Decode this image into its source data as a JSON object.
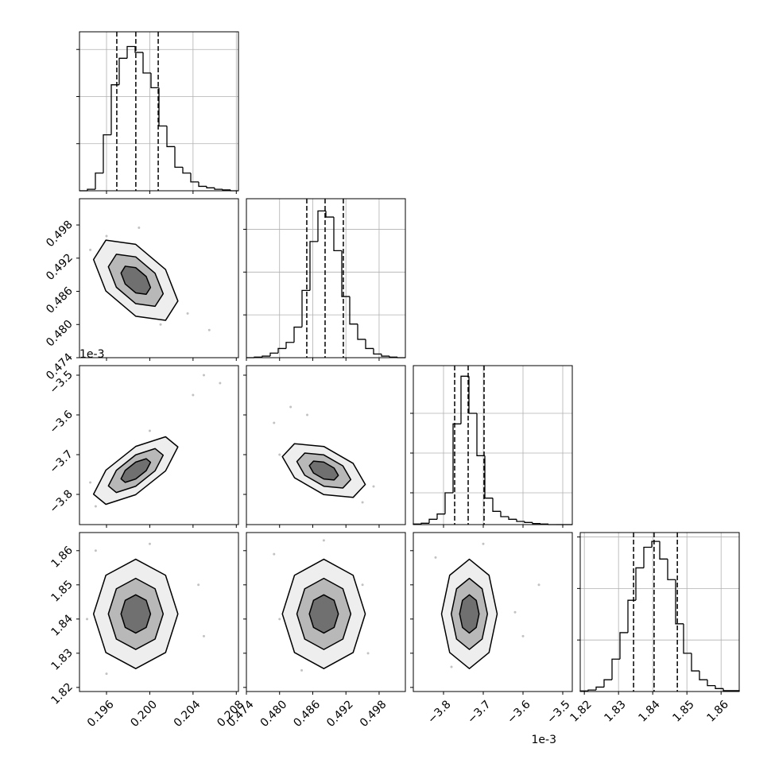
{
  "chart_data": {
    "type": "corner",
    "color": "#000000",
    "grid": true,
    "params": [
      {
        "lim": [
          0.1935,
          0.2082
        ],
        "ticks": [
          0.196,
          {
            "value": 0.2,
            "label": "0.200"
          },
          0.204,
          0.208
        ]
      },
      {
        "lim": [
          0.474,
          0.50275
        ],
        "ticks": [
          0.474,
          {
            "value": 0.48,
            "label": "0.480"
          },
          0.486,
          0.492,
          0.498
        ]
      },
      {
        "lim": [
          -3.876,
          -3.476
        ],
        "ticks": [
          {
            "value": -3.8,
            "label": "−3.8"
          },
          {
            "value": -3.7,
            "label": "−3.7"
          },
          {
            "value": -3.6,
            "label": "−3.6"
          },
          {
            "value": -3.5,
            "label": "−3.5"
          }
        ],
        "offset_label": "1e-3"
      },
      {
        "lim": [
          1.8188,
          1.8653
        ],
        "ticks": [
          1.82,
          1.83,
          1.84,
          1.85,
          1.86
        ]
      }
    ],
    "histograms": [
      {
        "bins": [
          0.1935,
          0.194235,
          0.19497,
          0.195705,
          0.19644,
          0.197175,
          0.19791,
          0.198645,
          0.19938,
          0.200115,
          0.20085,
          0.201585,
          0.20232,
          0.203055,
          0.20379,
          0.204525,
          0.20526,
          0.205995,
          0.20673,
          0.207465,
          0.2082
        ],
        "counts": [
          0,
          5,
          60,
          190,
          360,
          450,
          490,
          470,
          400,
          350,
          220,
          150,
          80,
          60,
          30,
          15,
          10,
          5,
          3,
          0
        ],
        "ylim": [
          0,
          540
        ],
        "yticks": [
          160,
          320,
          480
        ],
        "quantiles": [
          0.19695,
          0.19871,
          0.20078
        ]
      },
      {
        "bins": [
          0.474,
          0.4754375,
          0.476875,
          0.4783125,
          0.47975,
          0.4811875,
          0.482625,
          0.4840625,
          0.4855,
          0.4869375,
          0.488375,
          0.4898125,
          0.49125,
          0.4926875,
          0.494125,
          0.4955625,
          0.497,
          0.4984375,
          0.499875,
          0.5013125,
          0.50275
        ],
        "counts": [
          0,
          2,
          5,
          15,
          30,
          50,
          100,
          220,
          380,
          480,
          460,
          350,
          200,
          110,
          60,
          30,
          12,
          5,
          2,
          0
        ],
        "ylim": [
          0,
          520
        ],
        "yticks": [
          140,
          280,
          420
        ],
        "quantiles": [
          0.48492,
          0.48823,
          0.49153
        ]
      },
      {
        "bins": [
          -3.876,
          -3.856,
          -3.836,
          -3.816,
          -3.796,
          -3.776,
          -3.756,
          -3.736,
          -3.716,
          -3.696,
          -3.676,
          -3.656,
          -3.636,
          -3.616,
          -3.596,
          -3.576,
          -3.556,
          -3.536,
          -3.516,
          -3.496,
          -3.476
        ],
        "counts": [
          2,
          5,
          20,
          40,
          120,
          380,
          560,
          420,
          260,
          100,
          50,
          30,
          20,
          12,
          8,
          4,
          2,
          0,
          0,
          0
        ],
        "ylim": [
          0,
          600
        ],
        "yticks": [
          120,
          270,
          420
        ],
        "quantiles": [
          -3.772,
          -3.738,
          -3.698
        ]
      },
      {
        "bins": [
          1.8188,
          1.821125,
          1.82345,
          1.825775,
          1.8281,
          1.830425,
          1.83275,
          1.835075,
          1.8374,
          1.839725,
          1.84205,
          1.844375,
          1.8467,
          1.849025,
          1.85135,
          1.853675,
          1.856,
          1.858325,
          1.86065,
          1.862975,
          1.8653
        ],
        "counts": [
          2,
          5,
          15,
          40,
          110,
          200,
          310,
          420,
          490,
          510,
          450,
          380,
          230,
          130,
          70,
          40,
          20,
          10,
          3,
          3
        ],
        "ylim": [
          0,
          540
        ],
        "yticks": [
          175,
          350,
          525
        ],
        "quantiles": [
          1.8344,
          1.8404,
          1.8472
        ]
      }
    ],
    "pairs": [
      {
        "points": {
          "x": [
            0.1945,
            0.2035,
            0.2055,
            0.196,
            0.201,
            0.199
          ],
          "y": [
            0.4935,
            0.482,
            0.479,
            0.496,
            0.48,
            0.4975
          ]
        },
        "contours": [
          {
            "x": [
              0.2026,
              0.20146,
              0.1987,
              0.19594,
              0.1948,
              0.19594,
              0.1987,
              0.20146
            ],
            "y": [
              0.48425,
              0.48994,
              0.4945,
              0.49525,
              0.49175,
              0.48606,
              0.4815,
              0.48075
            ]
          },
          {
            "x": [
              0.20124,
              0.20049,
              0.1987,
              0.19691,
              0.19617,
              0.19691,
              0.1987,
              0.20049
            ],
            "y": [
              0.48556,
              0.48926,
              0.49223,
              0.49271,
              0.49044,
              0.48674,
              0.48377,
              0.48329
            ]
          },
          {
            "x": [
              0.20007,
              0.19967,
              0.1987,
              0.19773,
              0.19734,
              0.19773,
              0.1987,
              0.19967
            ],
            "y": [
              0.48669,
              0.48868,
              0.49028,
              0.49054,
              0.48931,
              0.48732,
              0.48572,
              0.48546
            ]
          }
        ]
      },
      {
        "points": {
          "x": [
            0.204,
            0.205,
            0.195,
            0.2,
            0.2065,
            0.1945
          ],
          "y": [
            -3.55,
            -3.5,
            -3.83,
            -3.64,
            -3.52,
            -3.77
          ]
        },
        "contours": [
          {
            "x": [
              0.2026,
              0.20146,
              0.1987,
              0.19594,
              0.1948,
              0.19594,
              0.1987,
              0.20146
            ],
            "y": [
              -3.6805,
              -3.655,
              -3.6793,
              -3.7392,
              -3.7995,
              -3.825,
              -3.8007,
              -3.7409
            ]
          },
          {
            "x": [
              0.20124,
              0.20049,
              0.1987,
              0.19691,
              0.19617,
              0.19691,
              0.1987,
              0.20049
            ],
            "y": [
              -3.7013,
              -3.6847,
              -3.7005,
              -3.7395,
              -3.7787,
              -3.7953,
              -3.7795,
              -3.7406
            ]
          },
          {
            "x": [
              0.20007,
              0.19967,
              0.1987,
              0.19773,
              0.19734,
              0.19773,
              0.1987,
              0.19967
            ],
            "y": [
              -3.7192,
              -3.7102,
              -3.7188,
              -3.7397,
              -3.7608,
              -3.7698,
              -3.7612,
              -3.7403
            ]
          }
        ]
      },
      {
        "points": {
          "x": [
            0.479,
            0.495,
            0.482,
            0.497,
            0.485,
            0.48
          ],
          "y": [
            -3.62,
            -3.82,
            -3.58,
            -3.78,
            -3.6,
            -3.7
          ]
        },
        "contours": [
          {
            "x": [
              0.4955,
              0.4933,
              0.488,
              0.4827,
              0.4805,
              0.4827,
              0.488,
              0.4933
            ],
            "y": [
              -3.775,
              -3.7219,
              -3.6794,
              -3.6724,
              -3.705,
              -3.7581,
              -3.8006,
              -3.8076
            ]
          },
          {
            "x": [
              0.49288,
              0.49145,
              0.488,
              0.48455,
              0.48313,
              0.48455,
              0.488,
              0.49145
            ],
            "y": [
              -3.7628,
              -3.7282,
              -3.7006,
              -3.6961,
              -3.7172,
              -3.7518,
              -3.7794,
              -3.7839
            ]
          },
          {
            "x": [
              0.49063,
              0.48986,
              0.488,
              0.48614,
              0.48538,
              0.48614,
              0.488,
              0.48986
            ],
            "y": [
              -3.7523,
              -3.7337,
              -3.7188,
              -3.7163,
              -3.7277,
              -3.7463,
              -3.7612,
              -3.7637
            ]
          }
        ]
      },
      {
        "points": {
          "x": [
            0.195,
            0.205,
            0.196,
            0.2045,
            0.2,
            0.1942
          ],
          "y": [
            1.86,
            1.835,
            1.824,
            1.85,
            1.862,
            1.84
          ]
        },
        "contours": [
          {
            "x": [
              0.2026,
              0.20146,
              0.1987,
              0.19594,
              0.1948,
              0.19594,
              0.1987,
              0.20146
            ],
            "y": [
              1.8415,
              1.8528,
              1.8575,
              1.8528,
              1.8415,
              1.8302,
              1.8255,
              1.8302
            ]
          },
          {
            "x": [
              0.20124,
              0.20049,
              0.1987,
              0.19691,
              0.19617,
              0.19691,
              0.1987,
              0.20049
            ],
            "y": [
              1.8415,
              1.84885,
              1.8519,
              1.84885,
              1.8415,
              1.83415,
              1.8311,
              1.83415
            ]
          },
          {
            "x": [
              0.20007,
              0.19967,
              0.1987,
              0.19773,
              0.19734,
              0.19773,
              0.1987,
              0.19967
            ],
            "y": [
              1.8415,
              1.84546,
              1.8471,
              1.84546,
              1.8415,
              1.83754,
              1.8359,
              1.83754
            ]
          }
        ]
      },
      {
        "points": {
          "x": [
            0.479,
            0.496,
            0.484,
            0.495,
            0.488,
            0.48
          ],
          "y": [
            1.859,
            1.83,
            1.825,
            1.85,
            1.863,
            1.84
          ]
        },
        "contours": [
          {
            "x": [
              0.4955,
              0.4933,
              0.488,
              0.4827,
              0.4805,
              0.4827,
              0.488,
              0.4933
            ],
            "y": [
              1.8415,
              1.8528,
              1.8575,
              1.8528,
              1.8415,
              1.8302,
              1.8255,
              1.8302
            ]
          },
          {
            "x": [
              0.49288,
              0.49145,
              0.488,
              0.48455,
              0.48313,
              0.48455,
              0.488,
              0.49145
            ],
            "y": [
              1.8415,
              1.84885,
              1.8519,
              1.84885,
              1.8415,
              1.83415,
              1.8311,
              1.83415
            ]
          },
          {
            "x": [
              0.49063,
              0.48986,
              0.488,
              0.48614,
              0.48538,
              0.48614,
              0.488,
              0.48986
            ],
            "y": [
              1.8415,
              1.84546,
              1.8471,
              1.84546,
              1.8415,
              1.83754,
              1.8359,
              1.83754
            ]
          }
        ]
      },
      {
        "points": {
          "x": [
            -3.82,
            -3.6,
            -3.78,
            -3.56,
            -3.7,
            -3.62
          ],
          "y": [
            1.858,
            1.835,
            1.826,
            1.85,
            1.862,
            1.842
          ]
        },
        "contours": [
          {
            "x": [
              -3.665,
              -3.6855,
              -3.735,
              -3.7845,
              -3.805,
              -3.7845,
              -3.735,
              -3.6855
            ],
            "y": [
              1.8415,
              1.8528,
              1.8575,
              1.8528,
              1.8415,
              1.8302,
              1.8255,
              1.8302
            ]
          },
          {
            "x": [
              -3.6895,
              -3.7028,
              -3.735,
              -3.7672,
              -3.7805,
              -3.7672,
              -3.735,
              -3.7028
            ],
            "y": [
              1.8415,
              1.84885,
              1.8519,
              1.84885,
              1.8415,
              1.83415,
              1.8311,
              1.83415
            ]
          },
          {
            "x": [
              -3.7105,
              -3.7177,
              -3.735,
              -3.7523,
              -3.7595,
              -3.7523,
              -3.735,
              -3.7177
            ],
            "y": [
              1.8415,
              1.84546,
              1.8471,
              1.84546,
              1.8415,
              1.83754,
              1.8359,
              1.83754
            ]
          }
        ]
      }
    ]
  }
}
